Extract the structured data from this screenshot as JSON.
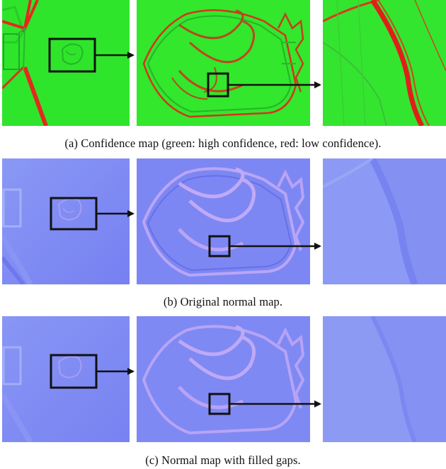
{
  "figure": {
    "rows": [
      {
        "caption": "(a)  Confidence map (green: high confidence, red: low confidence).",
        "style": "confidence",
        "colors": {
          "base": "#2ee62a",
          "accent": "#e8261c"
        }
      },
      {
        "caption": "(b)  Original normal map.",
        "style": "normal",
        "colors": {
          "base": "#7b86f4",
          "accent": "#b39ef6"
        }
      },
      {
        "caption": "(c)  Normal map with filled gaps.",
        "style": "normal-filled",
        "colors": {
          "base": "#7d88f4",
          "accent": "#b09cf5"
        }
      }
    ],
    "panels_per_row": [
      "overview",
      "zoom-1",
      "zoom-2"
    ]
  }
}
